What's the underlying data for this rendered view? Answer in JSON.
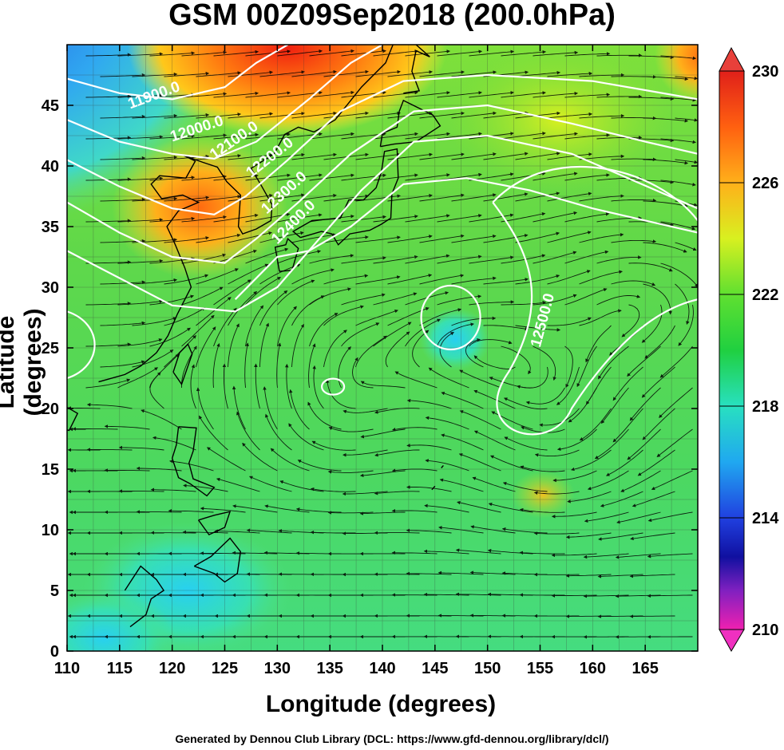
{
  "title": "GSM 00Z09Sep2018 (200.0hPa)",
  "footer": "Generated by Dennou Club Library (DCL: https://www.gfd-dennou.org/library/dcl/)",
  "axes": {
    "x_label": "Longitude (degrees)",
    "y_label": "Latitude  (degrees)",
    "x_ticks": [
      "110",
      "115",
      "120",
      "125",
      "130",
      "135",
      "140",
      "145",
      "150",
      "155",
      "160",
      "165"
    ],
    "y_ticks": [
      "0",
      "5",
      "10",
      "15",
      "20",
      "25",
      "30",
      "35",
      "40",
      "45"
    ]
  },
  "colorbar": {
    "labels": [
      "230",
      "226",
      "222",
      "218",
      "214",
      "210"
    ],
    "min": 210,
    "max": 230
  },
  "contours": [
    {
      "label": "11900.0"
    },
    {
      "label": "12000.0"
    },
    {
      "label": "12100.0"
    },
    {
      "label": "12200.0"
    },
    {
      "label": "12300.0"
    },
    {
      "label": "12400.0"
    },
    {
      "label": "12500.0"
    }
  ]
}
